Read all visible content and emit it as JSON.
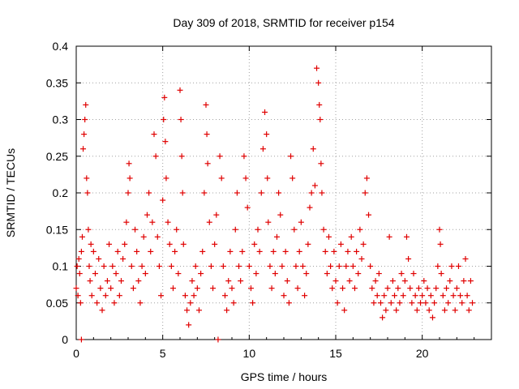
{
  "chart_data": {
    "type": "scatter",
    "title": "Day 309 of 2018, SRMTID for receiver p154",
    "xlabel": "GPS time / hours",
    "ylabel": "SRMTID / TECUs",
    "xlim": [
      0,
      24
    ],
    "ylim": [
      0,
      0.4
    ],
    "grid": true,
    "x_ticks": [
      0,
      5,
      10,
      15,
      20
    ],
    "x_tick_labels": [
      "0",
      "5",
      "10",
      "15",
      "20"
    ],
    "y_ticks": [
      0,
      0.05,
      0.1,
      0.15,
      0.2,
      0.25,
      0.3,
      0.35,
      0.4
    ],
    "y_tick_labels": [
      "0",
      "0.05",
      "0.1",
      "0.15",
      "0.2",
      "0.25",
      "0.3",
      "0.35",
      "0.4"
    ],
    "marker": "+",
    "color": "#e00000",
    "series": [
      {
        "name": "p154",
        "points": [
          [
            0.0,
            0.07
          ],
          [
            0.05,
            0.1
          ],
          [
            0.1,
            0.06
          ],
          [
            0.15,
            0.11
          ],
          [
            0.2,
            0.09
          ],
          [
            0.25,
            0.05
          ],
          [
            0.3,
            0.0
          ],
          [
            0.3,
            0.12
          ],
          [
            0.35,
            0.14
          ],
          [
            0.4,
            0.26
          ],
          [
            0.45,
            0.28
          ],
          [
            0.5,
            0.3
          ],
          [
            0.55,
            0.32
          ],
          [
            0.6,
            0.22
          ],
          [
            0.65,
            0.2
          ],
          [
            0.7,
            0.15
          ],
          [
            0.75,
            0.1
          ],
          [
            0.8,
            0.08
          ],
          [
            0.85,
            0.13
          ],
          [
            0.9,
            0.06
          ],
          [
            1.0,
            0.12
          ],
          [
            1.1,
            0.09
          ],
          [
            1.2,
            0.05
          ],
          [
            1.3,
            0.11
          ],
          [
            1.4,
            0.07
          ],
          [
            1.5,
            0.04
          ],
          [
            1.6,
            0.1
          ],
          [
            1.7,
            0.06
          ],
          [
            1.8,
            0.08
          ],
          [
            1.9,
            0.13
          ],
          [
            2.0,
            0.07
          ],
          [
            2.1,
            0.1
          ],
          [
            2.2,
            0.05
          ],
          [
            2.3,
            0.09
          ],
          [
            2.4,
            0.12
          ],
          [
            2.5,
            0.06
          ],
          [
            2.6,
            0.08
          ],
          [
            2.7,
            0.11
          ],
          [
            2.8,
            0.13
          ],
          [
            2.9,
            0.16
          ],
          [
            3.0,
            0.2
          ],
          [
            3.05,
            0.24
          ],
          [
            3.1,
            0.22
          ],
          [
            3.2,
            0.1
          ],
          [
            3.3,
            0.07
          ],
          [
            3.4,
            0.15
          ],
          [
            3.5,
            0.12
          ],
          [
            3.6,
            0.08
          ],
          [
            3.7,
            0.05
          ],
          [
            3.8,
            0.1
          ],
          [
            3.9,
            0.14
          ],
          [
            4.0,
            0.09
          ],
          [
            4.1,
            0.17
          ],
          [
            4.2,
            0.2
          ],
          [
            4.3,
            0.12
          ],
          [
            4.4,
            0.16
          ],
          [
            4.5,
            0.28
          ],
          [
            4.6,
            0.25
          ],
          [
            4.7,
            0.14
          ],
          [
            4.8,
            0.1
          ],
          [
            4.9,
            0.06
          ],
          [
            5.0,
            0.19
          ],
          [
            5.05,
            0.3
          ],
          [
            5.1,
            0.33
          ],
          [
            5.15,
            0.27
          ],
          [
            5.2,
            0.22
          ],
          [
            5.3,
            0.16
          ],
          [
            5.4,
            0.13
          ],
          [
            5.5,
            0.1
          ],
          [
            5.6,
            0.07
          ],
          [
            5.7,
            0.12
          ],
          [
            5.8,
            0.15
          ],
          [
            5.9,
            0.09
          ],
          [
            6.0,
            0.34
          ],
          [
            6.05,
            0.3
          ],
          [
            6.1,
            0.25
          ],
          [
            6.15,
            0.2
          ],
          [
            6.2,
            0.13
          ],
          [
            6.3,
            0.06
          ],
          [
            6.4,
            0.04
          ],
          [
            6.5,
            0.02
          ],
          [
            6.6,
            0.05
          ],
          [
            6.7,
            0.08
          ],
          [
            6.8,
            0.06
          ],
          [
            6.9,
            0.1
          ],
          [
            7.0,
            0.07
          ],
          [
            7.1,
            0.04
          ],
          [
            7.2,
            0.09
          ],
          [
            7.3,
            0.12
          ],
          [
            7.4,
            0.2
          ],
          [
            7.5,
            0.32
          ],
          [
            7.55,
            0.28
          ],
          [
            7.6,
            0.24
          ],
          [
            7.7,
            0.16
          ],
          [
            7.8,
            0.1
          ],
          [
            7.9,
            0.07
          ],
          [
            8.0,
            0.13
          ],
          [
            8.1,
            0.17
          ],
          [
            8.2,
            0.0
          ],
          [
            8.3,
            0.25
          ],
          [
            8.4,
            0.22
          ],
          [
            8.5,
            0.1
          ],
          [
            8.6,
            0.06
          ],
          [
            8.7,
            0.04
          ],
          [
            8.8,
            0.08
          ],
          [
            8.9,
            0.12
          ],
          [
            9.0,
            0.07
          ],
          [
            9.1,
            0.05
          ],
          [
            9.2,
            0.15
          ],
          [
            9.3,
            0.2
          ],
          [
            9.4,
            0.1
          ],
          [
            9.5,
            0.08
          ],
          [
            9.6,
            0.12
          ],
          [
            9.7,
            0.25
          ],
          [
            9.8,
            0.22
          ],
          [
            9.9,
            0.18
          ],
          [
            10.0,
            0.1
          ],
          [
            10.1,
            0.07
          ],
          [
            10.2,
            0.05
          ],
          [
            10.3,
            0.13
          ],
          [
            10.4,
            0.09
          ],
          [
            10.5,
            0.15
          ],
          [
            10.6,
            0.12
          ],
          [
            10.7,
            0.2
          ],
          [
            10.8,
            0.26
          ],
          [
            10.9,
            0.31
          ],
          [
            11.0,
            0.28
          ],
          [
            11.05,
            0.22
          ],
          [
            11.1,
            0.16
          ],
          [
            11.2,
            0.1
          ],
          [
            11.3,
            0.07
          ],
          [
            11.4,
            0.12
          ],
          [
            11.5,
            0.09
          ],
          [
            11.6,
            0.14
          ],
          [
            11.7,
            0.2
          ],
          [
            11.8,
            0.17
          ],
          [
            11.9,
            0.1
          ],
          [
            12.0,
            0.06
          ],
          [
            12.1,
            0.12
          ],
          [
            12.2,
            0.08
          ],
          [
            12.3,
            0.05
          ],
          [
            12.4,
            0.25
          ],
          [
            12.5,
            0.22
          ],
          [
            12.6,
            0.15
          ],
          [
            12.7,
            0.1
          ],
          [
            12.8,
            0.07
          ],
          [
            12.9,
            0.12
          ],
          [
            13.0,
            0.16
          ],
          [
            13.1,
            0.1
          ],
          [
            13.2,
            0.06
          ],
          [
            13.3,
            0.09
          ],
          [
            13.4,
            0.13
          ],
          [
            13.5,
            0.18
          ],
          [
            13.6,
            0.2
          ],
          [
            13.7,
            0.26
          ],
          [
            13.8,
            0.21
          ],
          [
            13.9,
            0.37
          ],
          [
            14.0,
            0.35
          ],
          [
            14.05,
            0.32
          ],
          [
            14.1,
            0.3
          ],
          [
            14.15,
            0.24
          ],
          [
            14.2,
            0.2
          ],
          [
            14.3,
            0.15
          ],
          [
            14.4,
            0.12
          ],
          [
            14.5,
            0.09
          ],
          [
            14.6,
            0.14
          ],
          [
            14.7,
            0.1
          ],
          [
            14.8,
            0.07
          ],
          [
            14.9,
            0.12
          ],
          [
            15.0,
            0.08
          ],
          [
            15.1,
            0.05
          ],
          [
            15.2,
            0.1
          ],
          [
            15.3,
            0.13
          ],
          [
            15.4,
            0.07
          ],
          [
            15.5,
            0.04
          ],
          [
            15.6,
            0.1
          ],
          [
            15.7,
            0.12
          ],
          [
            15.8,
            0.08
          ],
          [
            15.9,
            0.14
          ],
          [
            16.0,
            0.1
          ],
          [
            16.1,
            0.07
          ],
          [
            16.2,
            0.12
          ],
          [
            16.3,
            0.09
          ],
          [
            16.4,
            0.15
          ],
          [
            16.5,
            0.11
          ],
          [
            16.6,
            0.13
          ],
          [
            16.7,
            0.2
          ],
          [
            16.8,
            0.22
          ],
          [
            16.9,
            0.17
          ],
          [
            17.0,
            0.1
          ],
          [
            17.1,
            0.07
          ],
          [
            17.2,
            0.05
          ],
          [
            17.3,
            0.08
          ],
          [
            17.4,
            0.06
          ],
          [
            17.5,
            0.09
          ],
          [
            17.6,
            0.05
          ],
          [
            17.7,
            0.03
          ],
          [
            17.8,
            0.06
          ],
          [
            17.9,
            0.04
          ],
          [
            18.0,
            0.07
          ],
          [
            18.1,
            0.14
          ],
          [
            18.2,
            0.05
          ],
          [
            18.3,
            0.08
          ],
          [
            18.4,
            0.06
          ],
          [
            18.5,
            0.04
          ],
          [
            18.6,
            0.07
          ],
          [
            18.7,
            0.05
          ],
          [
            18.8,
            0.09
          ],
          [
            18.9,
            0.06
          ],
          [
            19.0,
            0.08
          ],
          [
            19.1,
            0.14
          ],
          [
            19.2,
            0.11
          ],
          [
            19.3,
            0.07
          ],
          [
            19.4,
            0.05
          ],
          [
            19.5,
            0.09
          ],
          [
            19.6,
            0.06
          ],
          [
            19.7,
            0.04
          ],
          [
            19.8,
            0.07
          ],
          [
            19.9,
            0.05
          ],
          [
            20.0,
            0.06
          ],
          [
            20.1,
            0.08
          ],
          [
            20.2,
            0.05
          ],
          [
            20.3,
            0.07
          ],
          [
            20.4,
            0.04
          ],
          [
            20.5,
            0.06
          ],
          [
            20.6,
            0.03
          ],
          [
            20.7,
            0.05
          ],
          [
            20.8,
            0.07
          ],
          [
            20.9,
            0.1
          ],
          [
            21.0,
            0.15
          ],
          [
            21.05,
            0.13
          ],
          [
            21.1,
            0.09
          ],
          [
            21.2,
            0.06
          ],
          [
            21.3,
            0.04
          ],
          [
            21.4,
            0.07
          ],
          [
            21.5,
            0.05
          ],
          [
            21.6,
            0.08
          ],
          [
            21.7,
            0.1
          ],
          [
            21.8,
            0.06
          ],
          [
            21.9,
            0.04
          ],
          [
            22.0,
            0.07
          ],
          [
            22.1,
            0.1
          ],
          [
            22.2,
            0.06
          ],
          [
            22.3,
            0.05
          ],
          [
            22.4,
            0.08
          ],
          [
            22.5,
            0.11
          ],
          [
            22.6,
            0.06
          ],
          [
            22.7,
            0.04
          ],
          [
            22.8,
            0.08
          ],
          [
            22.9,
            0.05
          ]
        ]
      }
    ]
  }
}
